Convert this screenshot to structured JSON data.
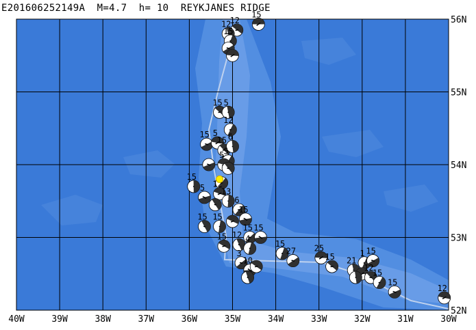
{
  "title": "E201606252149A  M=4.7  h= 10  REYKJANES RIDGE",
  "colors": {
    "ocean": "#3a7ad8",
    "ridge_shallow": "#5c95e4",
    "ridge_crest": "#7aa8ec",
    "grid": "#000000",
    "plate_boundary": "#c9d8f0",
    "epicenter": "#ffee00",
    "beachball_fill": "#303030",
    "beachball_light": "#ffffff"
  },
  "map": {
    "lon_range": [
      -40,
      -30
    ],
    "lat_range": [
      52,
      56
    ],
    "lon_labels": [
      "40W",
      "39W",
      "38W",
      "37W",
      "36W",
      "35W",
      "34W",
      "33W",
      "32W",
      "31W",
      "30W"
    ],
    "lat_labels": [
      "56N",
      "55N",
      "54N",
      "53N",
      "52N"
    ]
  },
  "epicenter": {
    "lon": -35.3,
    "lat": 53.8
  },
  "mechanisms": [
    {
      "lon": -34.4,
      "lat": 55.93,
      "label": "15"
    },
    {
      "lon": -34.9,
      "lat": 55.85,
      "label": "12"
    },
    {
      "lon": -35.1,
      "lat": 55.8,
      "label": "12"
    },
    {
      "lon": -35.05,
      "lat": 55.7,
      "label": "15"
    },
    {
      "lon": -35.1,
      "lat": 55.6,
      "label": ""
    },
    {
      "lon": -35.0,
      "lat": 55.5,
      "label": ""
    },
    {
      "lon": -35.3,
      "lat": 54.72,
      "label": "15"
    },
    {
      "lon": -35.1,
      "lat": 54.72,
      "label": "5"
    },
    {
      "lon": -35.05,
      "lat": 54.48,
      "label": "12"
    },
    {
      "lon": -35.6,
      "lat": 54.28,
      "label": "15"
    },
    {
      "lon": -35.35,
      "lat": 54.3,
      "label": "5"
    },
    {
      "lon": -35.2,
      "lat": 54.2,
      "label": "15"
    },
    {
      "lon": -35.0,
      "lat": 54.25,
      "label": "6"
    },
    {
      "lon": -35.1,
      "lat": 54.05,
      "label": "5"
    },
    {
      "lon": -35.55,
      "lat": 54.0,
      "label": ""
    },
    {
      "lon": -35.2,
      "lat": 54.0,
      "label": "5"
    },
    {
      "lon": -35.1,
      "lat": 53.95,
      "label": ""
    },
    {
      "lon": -35.9,
      "lat": 53.7,
      "label": "15"
    },
    {
      "lon": -35.25,
      "lat": 53.75,
      "label": ""
    },
    {
      "lon": -35.65,
      "lat": 53.55,
      "label": "5"
    },
    {
      "lon": -35.3,
      "lat": 53.6,
      "label": "12"
    },
    {
      "lon": -35.4,
      "lat": 53.45,
      "label": ""
    },
    {
      "lon": -35.1,
      "lat": 53.5,
      "label": "13"
    },
    {
      "lon": -34.85,
      "lat": 53.38,
      "label": "6"
    },
    {
      "lon": -34.7,
      "lat": 53.25,
      "label": "15"
    },
    {
      "lon": -35.0,
      "lat": 53.22,
      "label": ""
    },
    {
      "lon": -35.65,
      "lat": 53.15,
      "label": "15"
    },
    {
      "lon": -35.3,
      "lat": 53.15,
      "label": "15"
    },
    {
      "lon": -34.6,
      "lat": 53.0,
      "label": "15"
    },
    {
      "lon": -34.35,
      "lat": 53.0,
      "label": "15"
    },
    {
      "lon": -35.2,
      "lat": 52.88,
      "label": "15"
    },
    {
      "lon": -34.85,
      "lat": 52.9,
      "label": "12"
    },
    {
      "lon": -34.6,
      "lat": 52.85,
      "label": "4"
    },
    {
      "lon": -34.8,
      "lat": 52.65,
      "label": "3"
    },
    {
      "lon": -34.6,
      "lat": 52.55,
      "label": "10"
    },
    {
      "lon": -34.45,
      "lat": 52.6,
      "label": ""
    },
    {
      "lon": -34.65,
      "lat": 52.45,
      "label": ""
    },
    {
      "lon": -33.85,
      "lat": 52.78,
      "label": "15"
    },
    {
      "lon": -33.6,
      "lat": 52.68,
      "label": "27"
    },
    {
      "lon": -32.95,
      "lat": 52.72,
      "label": "25"
    },
    {
      "lon": -32.7,
      "lat": 52.6,
      "label": "15"
    },
    {
      "lon": -32.2,
      "lat": 52.55,
      "label": "21"
    },
    {
      "lon": -31.95,
      "lat": 52.65,
      "label": "1"
    },
    {
      "lon": -31.75,
      "lat": 52.68,
      "label": "15"
    },
    {
      "lon": -32.0,
      "lat": 52.5,
      "label": ""
    },
    {
      "lon": -31.8,
      "lat": 52.45,
      "label": "12"
    },
    {
      "lon": -32.15,
      "lat": 52.45,
      "label": ""
    },
    {
      "lon": -31.6,
      "lat": 52.38,
      "label": "15"
    },
    {
      "lon": -31.25,
      "lat": 52.25,
      "label": "15"
    },
    {
      "lon": -30.1,
      "lat": 52.17,
      "label": "12"
    }
  ]
}
